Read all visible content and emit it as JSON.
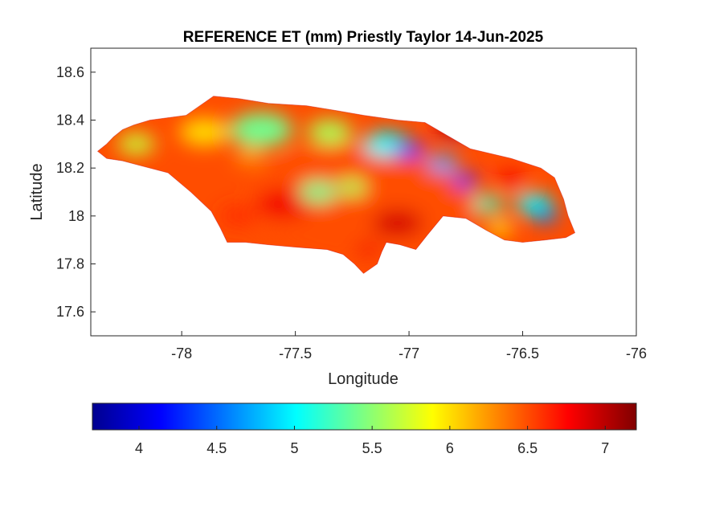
{
  "chart_data": {
    "type": "heatmap",
    "title": "REFERENCE ET (mm) Priestly Taylor 14-Jun-2025",
    "xlabel": "Longitude",
    "ylabel": "Latitude",
    "xlim": [
      -78.4,
      -76
    ],
    "ylim": [
      17.5,
      18.7
    ],
    "xticks": [
      -78,
      -77.5,
      -77,
      -76.5,
      -76
    ],
    "xtick_labels": [
      "-78",
      "-77.5",
      "-77",
      "-76.5",
      "-76"
    ],
    "yticks": [
      17.6,
      17.8,
      18,
      18.2,
      18.4,
      18.6
    ],
    "ytick_labels": [
      "17.6",
      "17.8",
      "18",
      "18.2",
      "18.4",
      "18.6"
    ],
    "grid": false,
    "colormap": "jet",
    "color_range": [
      3.7,
      7.2
    ],
    "colorbar_ticks": [
      4,
      4.5,
      5,
      5.5,
      6,
      6.5,
      7
    ],
    "colorbar_labels": [
      "4",
      "4.5",
      "5",
      "5.5",
      "6",
      "6.5",
      "7"
    ],
    "colorbar_location": "bottom",
    "colorbar_stops": [
      "#00008f",
      "#0000ff",
      "#00ffff",
      "#ffff00",
      "#ff0000",
      "#800000"
    ],
    "boundary_lonlat": [
      [
        -78.37,
        18.27
      ],
      [
        -78.33,
        18.3
      ],
      [
        -78.3,
        18.33
      ],
      [
        -78.26,
        18.36
      ],
      [
        -78.21,
        18.38
      ],
      [
        -78.14,
        18.4
      ],
      [
        -78.06,
        18.41
      ],
      [
        -77.98,
        18.42
      ],
      [
        -77.92,
        18.46
      ],
      [
        -77.86,
        18.5
      ],
      [
        -77.75,
        18.49
      ],
      [
        -77.62,
        18.47
      ],
      [
        -77.45,
        18.46
      ],
      [
        -77.32,
        18.44
      ],
      [
        -77.2,
        18.42
      ],
      [
        -77.05,
        18.4
      ],
      [
        -76.93,
        18.39
      ],
      [
        -76.84,
        18.34
      ],
      [
        -76.73,
        18.28
      ],
      [
        -76.55,
        18.24
      ],
      [
        -76.42,
        18.2
      ],
      [
        -76.36,
        18.16
      ],
      [
        -76.32,
        18.07
      ],
      [
        -76.3,
        18.0
      ],
      [
        -76.27,
        17.93
      ],
      [
        -76.31,
        17.91
      ],
      [
        -76.4,
        17.9
      ],
      [
        -76.5,
        17.89
      ],
      [
        -76.58,
        17.9
      ],
      [
        -76.66,
        17.94
      ],
      [
        -76.75,
        17.99
      ],
      [
        -76.85,
        18.0
      ],
      [
        -76.92,
        17.92
      ],
      [
        -76.97,
        17.86
      ],
      [
        -77.04,
        17.88
      ],
      [
        -77.1,
        17.89
      ],
      [
        -77.12,
        17.85
      ],
      [
        -77.14,
        17.8
      ],
      [
        -77.2,
        17.76
      ],
      [
        -77.24,
        17.8
      ],
      [
        -77.29,
        17.84
      ],
      [
        -77.36,
        17.86
      ],
      [
        -77.5,
        17.87
      ],
      [
        -77.62,
        17.88
      ],
      [
        -77.72,
        17.89
      ],
      [
        -77.8,
        17.89
      ],
      [
        -77.83,
        17.95
      ],
      [
        -77.87,
        18.02
      ],
      [
        -77.96,
        18.1
      ],
      [
        -78.06,
        18.18
      ],
      [
        -78.18,
        18.21
      ],
      [
        -78.26,
        18.23
      ],
      [
        -78.33,
        18.24
      ]
    ],
    "field_blobs": [
      {
        "lon": -77.2,
        "lat": 18.05,
        "r": 0.9,
        "value": 6.5
      },
      {
        "lon": -77.9,
        "lat": 18.35,
        "r": 0.2,
        "value": 6.0
      },
      {
        "lon": -78.2,
        "lat": 18.3,
        "r": 0.15,
        "value": 5.7
      },
      {
        "lon": -77.65,
        "lat": 18.36,
        "r": 0.25,
        "value": 5.4
      },
      {
        "lon": -77.35,
        "lat": 18.35,
        "r": 0.18,
        "value": 5.6
      },
      {
        "lon": -77.1,
        "lat": 18.3,
        "r": 0.18,
        "value": 5.0
      },
      {
        "lon": -77.0,
        "lat": 18.28,
        "r": 0.12,
        "value": 4.3
      },
      {
        "lon": -76.85,
        "lat": 18.22,
        "r": 0.12,
        "value": 4.7
      },
      {
        "lon": -76.75,
        "lat": 18.15,
        "r": 0.1,
        "value": 4.3
      },
      {
        "lon": -76.45,
        "lat": 18.05,
        "r": 0.15,
        "value": 5.0
      },
      {
        "lon": -76.4,
        "lat": 18.0,
        "r": 0.1,
        "value": 4.5
      },
      {
        "lon": -76.65,
        "lat": 18.05,
        "r": 0.12,
        "value": 5.2
      },
      {
        "lon": -76.8,
        "lat": 18.36,
        "r": 0.15,
        "value": 7.0
      },
      {
        "lon": -76.55,
        "lat": 18.15,
        "r": 0.12,
        "value": 6.8
      },
      {
        "lon": -77.05,
        "lat": 17.97,
        "r": 0.2,
        "value": 6.9
      },
      {
        "lon": -77.55,
        "lat": 18.05,
        "r": 0.22,
        "value": 6.8
      },
      {
        "lon": -77.75,
        "lat": 18.0,
        "r": 0.15,
        "value": 6.6
      },
      {
        "lon": -77.4,
        "lat": 18.1,
        "r": 0.15,
        "value": 5.4
      },
      {
        "lon": -77.25,
        "lat": 18.12,
        "r": 0.12,
        "value": 5.6
      },
      {
        "lon": -76.6,
        "lat": 17.95,
        "r": 0.1,
        "value": 5.9
      },
      {
        "lon": -77.18,
        "lat": 17.86,
        "r": 0.1,
        "value": 6.8
      },
      {
        "lon": -77.7,
        "lat": 18.25,
        "r": 0.12,
        "value": 6.2
      }
    ]
  }
}
